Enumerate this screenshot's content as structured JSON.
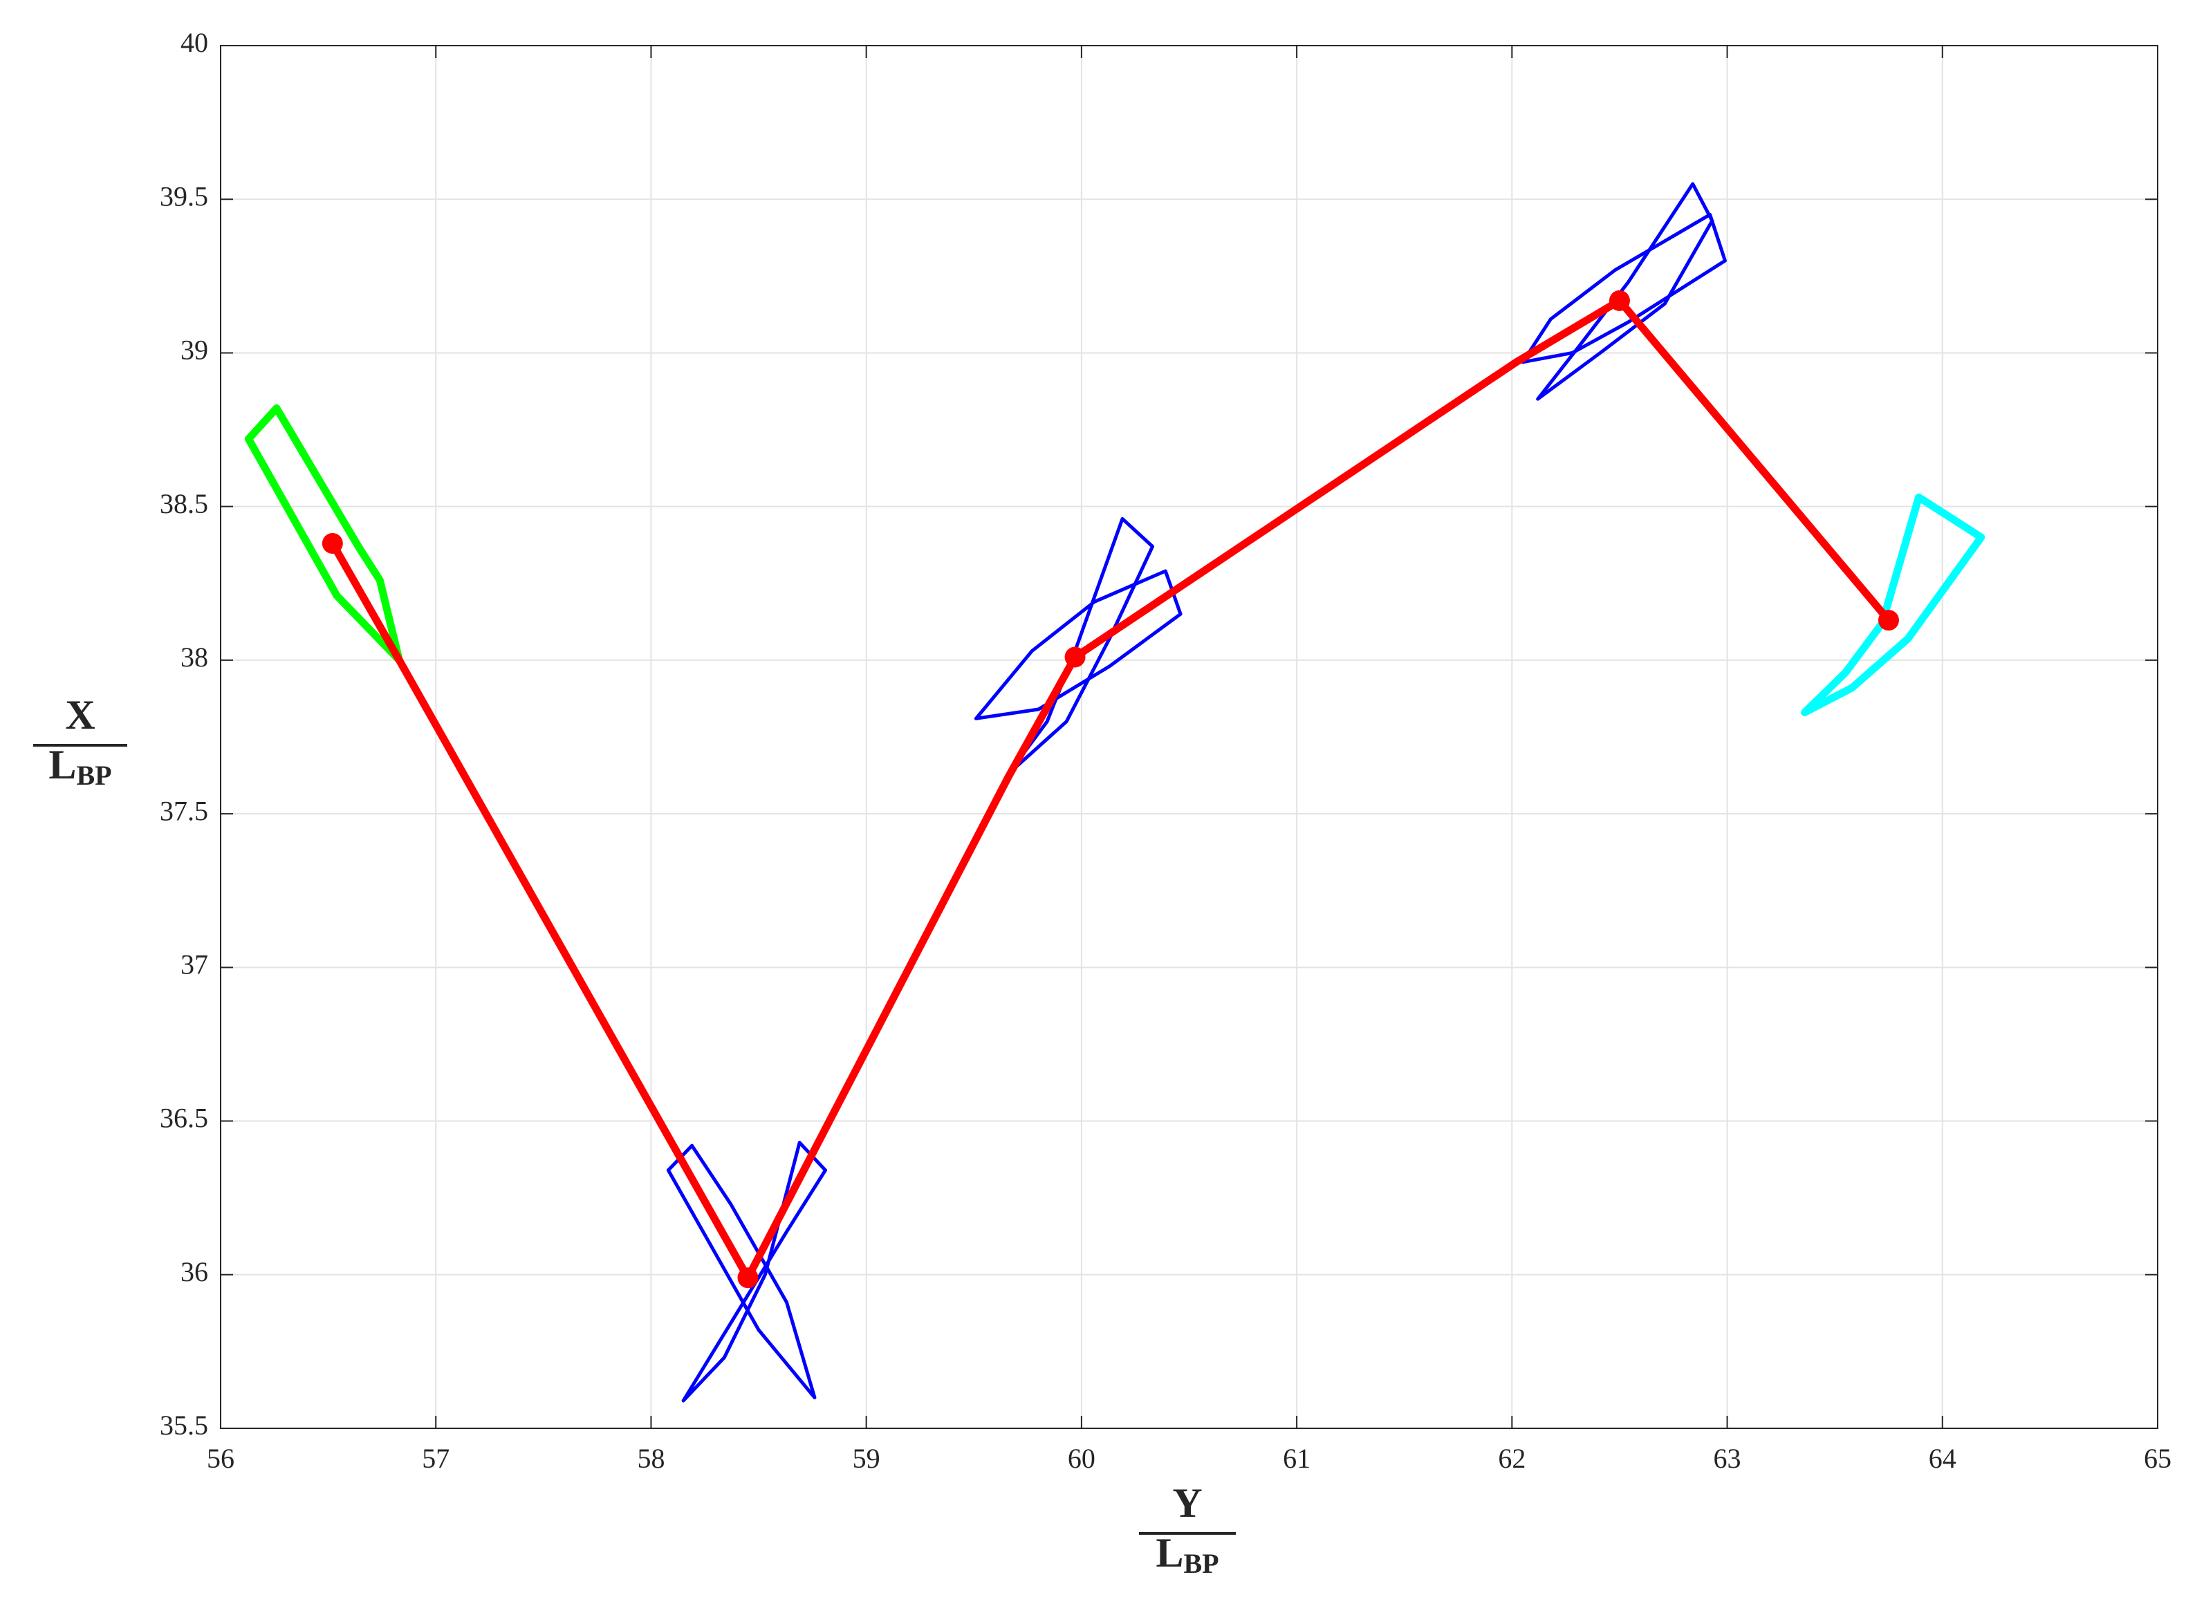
{
  "chart_data": {
    "type": "line",
    "xlabel": {
      "numerator": "Y",
      "denominator": "L",
      "subscript": "BP"
    },
    "ylabel": {
      "numerator": "X",
      "denominator": "L",
      "subscript": "BP"
    },
    "xlim": [
      56,
      65
    ],
    "xticks": [
      56,
      57,
      58,
      59,
      60,
      61,
      62,
      63,
      64,
      65
    ],
    "ylim": [
      35.5,
      40
    ],
    "yticks": [
      35.5,
      36,
      36.5,
      37,
      37.5,
      38,
      38.5,
      39,
      39.5,
      40
    ],
    "grid": true,
    "series": [
      {
        "color": "#00ff00",
        "closed": true,
        "x": [
          56.83,
          56.74,
          56.64,
          56.26,
          56.13,
          56.54
        ],
        "y": [
          38.0,
          38.26,
          38.37,
          38.82,
          38.72,
          38.21
        ]
      },
      {
        "color": "#0000ff",
        "closed": true,
        "x": [
          58.08,
          58.19,
          58.37,
          58.63,
          58.76,
          58.5
        ],
        "y": [
          36.34,
          36.42,
          36.23,
          35.91,
          35.6,
          35.82
        ]
      },
      {
        "color": "#0000ff",
        "closed": true,
        "x": [
          58.15,
          58.34,
          58.53,
          58.69,
          58.81,
          58.63
        ],
        "y": [
          35.59,
          35.73,
          36.0,
          36.43,
          36.34,
          36.14
        ]
      },
      {
        "color": "#0000ff",
        "closed": true,
        "x": [
          59.66,
          59.84,
          59.97,
          60.19,
          60.33,
          60.13,
          59.93
        ],
        "y": [
          37.63,
          37.8,
          38.03,
          38.46,
          38.37,
          38.07,
          37.8
        ]
      },
      {
        "color": "#0000ff",
        "closed": true,
        "x": [
          59.51,
          59.8,
          60.13,
          60.46,
          60.39,
          60.06,
          59.77
        ],
        "y": [
          37.81,
          37.84,
          37.98,
          38.15,
          38.29,
          38.19,
          38.03
        ]
      },
      {
        "color": "#0000ff",
        "closed": true,
        "x": [
          62.12,
          62.31,
          62.54,
          62.84,
          62.93,
          62.71,
          62.41
        ],
        "y": [
          38.85,
          39.02,
          39.23,
          39.55,
          39.43,
          39.16,
          39.0
        ]
      },
      {
        "color": "#0000ff",
        "closed": true,
        "x": [
          62.05,
          62.28,
          62.54,
          62.99,
          62.92,
          62.48,
          62.18
        ],
        "y": [
          38.97,
          39.0,
          39.1,
          39.3,
          39.45,
          39.27,
          39.11
        ]
      },
      {
        "color": "#00ffff",
        "closed": true,
        "x": [
          63.36,
          63.55,
          63.72,
          63.89,
          64.18,
          63.84,
          63.58
        ],
        "y": [
          37.83,
          37.96,
          38.12,
          38.53,
          38.4,
          38.07,
          37.91
        ]
      },
      {
        "color": "#ff0000",
        "x": [
          56.52,
          56.83,
          58.45,
          59.66,
          59.97,
          62.02,
          62.5,
          63.75
        ],
        "y": [
          38.38,
          38.0,
          35.99,
          37.62,
          38.01,
          38.97,
          39.17,
          38.13
        ]
      },
      {
        "color": "#ff0000",
        "markers": true,
        "x": [
          56.52,
          58.45,
          59.97,
          62.5,
          63.75
        ],
        "y": [
          38.38,
          35.99,
          38.01,
          39.17,
          38.13
        ]
      }
    ]
  }
}
